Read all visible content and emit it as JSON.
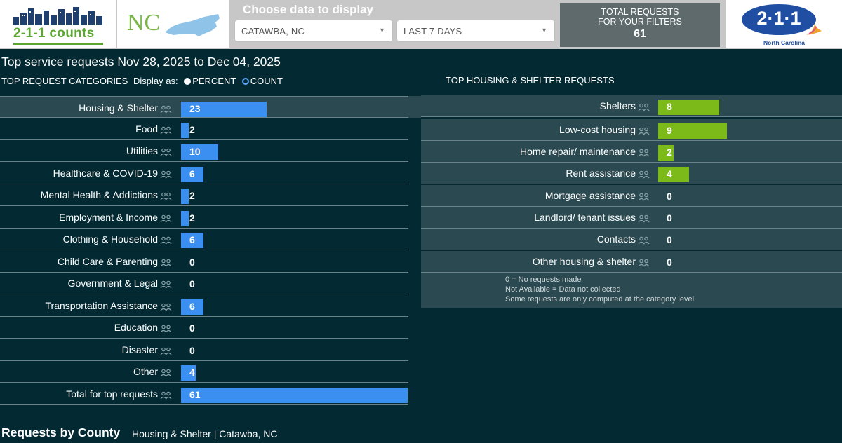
{
  "header": {
    "logo_text": "2-1-1 counts",
    "state_abbr": "NC",
    "choose_label": "Choose data to display",
    "county_select": "CATAWBA, NC",
    "period_select": "LAST 7 DAYS",
    "total_label": "TOTAL REQUESTS\nFOR YOUR FILTERS",
    "total_value": "61",
    "brand_number": "2·1·1",
    "brand_sub": "North Carolina"
  },
  "page_title": "Top service requests Nov 28, 2025 to Dec 04, 2025",
  "categories_section": {
    "title": "TOP REQUEST CATEGORIES",
    "display_as": "Display as:",
    "percent_label": "PERCENT",
    "count_label": "COUNT",
    "rows": [
      {
        "label": "Housing & Shelter",
        "value": "23",
        "count": 23
      },
      {
        "label": "Food",
        "value": "2",
        "count": 2
      },
      {
        "label": "Utilities",
        "value": "10",
        "count": 10
      },
      {
        "label": "Healthcare & COVID-19",
        "value": "6",
        "count": 6
      },
      {
        "label": "Mental Health & Addictions",
        "value": "2",
        "count": 2
      },
      {
        "label": "Employment & Income",
        "value": "2",
        "count": 2
      },
      {
        "label": "Clothing & Household",
        "value": "6",
        "count": 6
      },
      {
        "label": "Child Care & Parenting",
        "value": "0",
        "count": 0
      },
      {
        "label": "Government & Legal",
        "value": "0",
        "count": 0
      },
      {
        "label": "Transportation Assistance",
        "value": "6",
        "count": 6
      },
      {
        "label": "Education",
        "value": "0",
        "count": 0
      },
      {
        "label": "Disaster",
        "value": "0",
        "count": 0
      },
      {
        "label": "Other",
        "value": "4",
        "count": 4
      },
      {
        "label": "Total for top requests",
        "value": "61",
        "count": 61
      }
    ]
  },
  "housing_section": {
    "title": "TOP HOUSING & SHELTER REQUESTS",
    "rows": [
      {
        "label": "Shelters",
        "value": "8",
        "count": 8
      },
      {
        "label": "Low-cost housing",
        "value": "9",
        "count": 9
      },
      {
        "label": "Home repair/ maintenance",
        "value": "2",
        "count": 2
      },
      {
        "label": "Rent assistance",
        "value": "4",
        "count": 4
      },
      {
        "label": "Mortgage assistance",
        "value": "0",
        "count": 0
      },
      {
        "label": "Landlord/ tenant issues",
        "value": "0",
        "count": 0
      },
      {
        "label": "Contacts",
        "value": "0",
        "count": 0
      },
      {
        "label": "Other housing & shelter",
        "value": "0",
        "count": 0
      }
    ],
    "notes": [
      "0 = No requests made",
      "Not Available = Data not collected",
      "Some requests are only computed at the category level"
    ]
  },
  "bottom": {
    "title": "Requests by County",
    "subtitle": "Housing & Shelter | Catawba, NC"
  },
  "colors": {
    "background": "#032a33",
    "blue_bar": "#3a8ff0",
    "green_bar": "#7cba1a",
    "brand_blue": "#1f4ea2",
    "counts_green": "#5aa832"
  }
}
